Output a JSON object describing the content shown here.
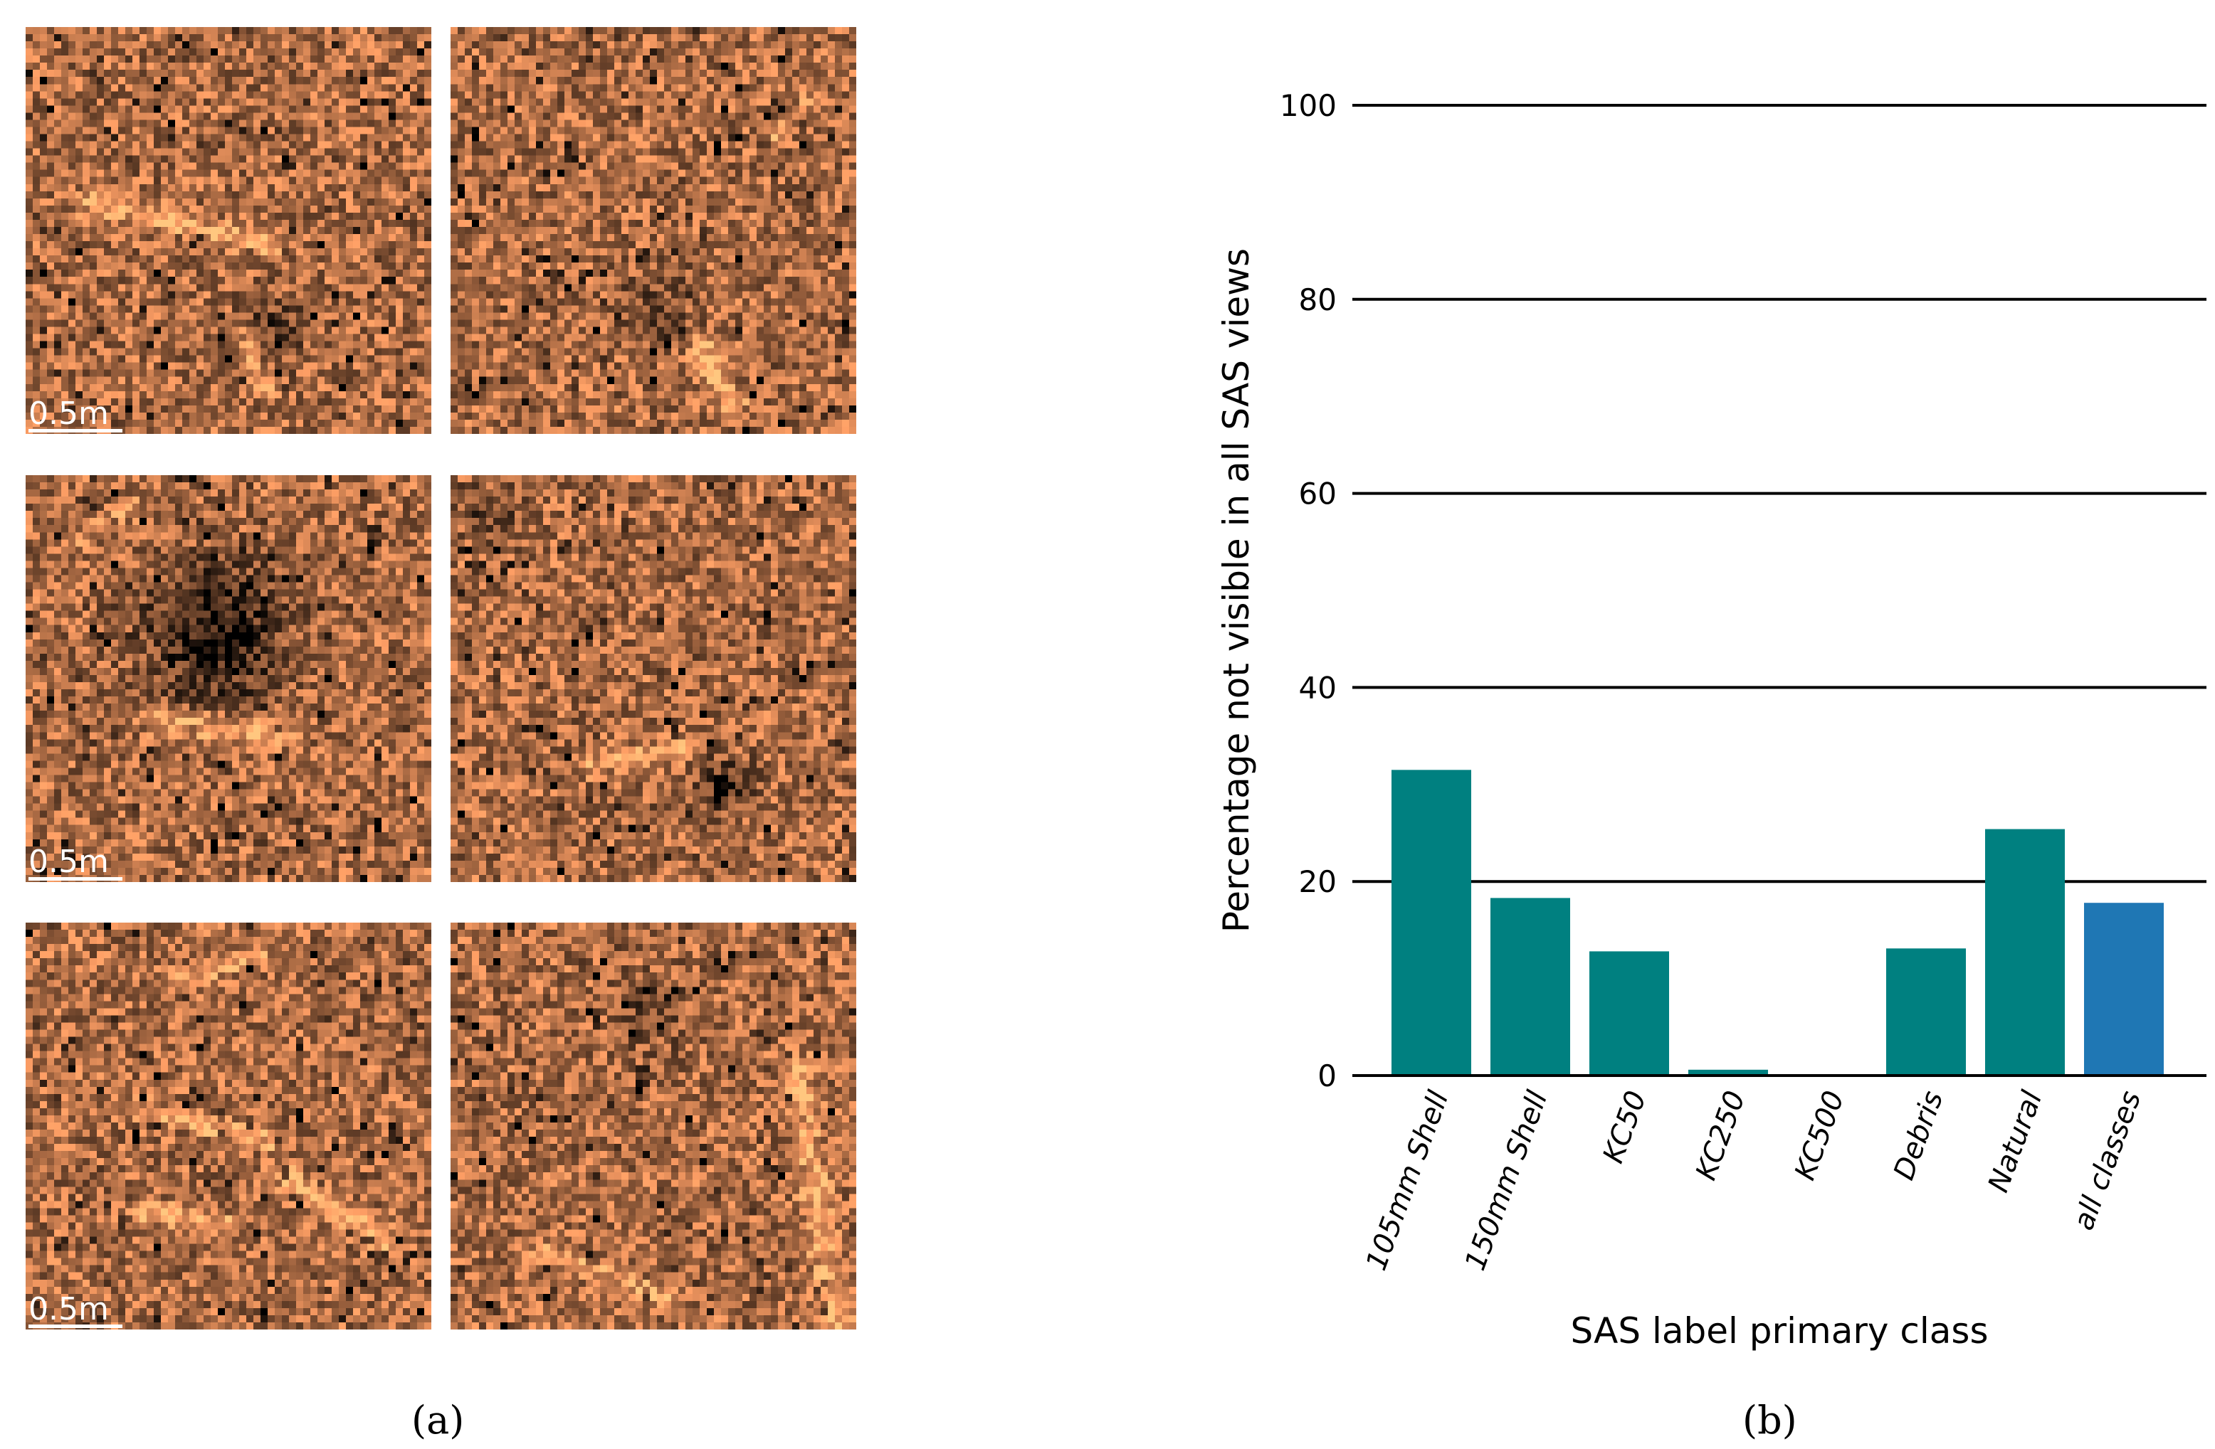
{
  "figure": {
    "caption_a": "(a)",
    "caption_b": "(b)"
  },
  "sas_panel": {
    "scale_label": "0.5m",
    "rows": 3,
    "cols": 2,
    "colormap": "copper"
  },
  "chart_data": {
    "type": "bar",
    "title": "",
    "xlabel": "SAS label primary class",
    "ylabel": "Percentage not visible in all SAS views",
    "categories": [
      "105mm Shell",
      "150mm Shell",
      "KC50",
      "KC250",
      "KC500",
      "Debris",
      "Natural",
      "all classes"
    ],
    "values": [
      31.5,
      18.3,
      12.8,
      0.6,
      0,
      13.1,
      25.4,
      17.8
    ],
    "bar_colors": [
      "#008080",
      "#008080",
      "#008080",
      "#008080",
      "#008080",
      "#008080",
      "#008080",
      "#1f77b4"
    ],
    "ylim": [
      0,
      100
    ],
    "yticks": [
      0,
      20,
      40,
      60,
      80,
      100
    ],
    "grid": true,
    "legend": "none"
  }
}
